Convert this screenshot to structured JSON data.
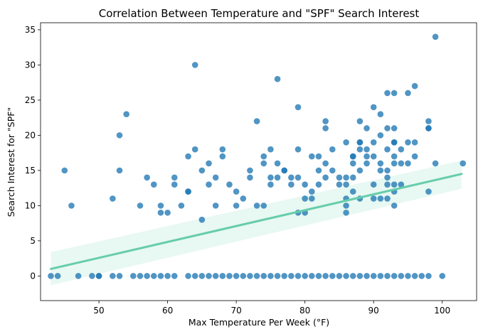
{
  "chart_data": {
    "type": "scatter",
    "title": "Correlation Between Temperature and \"SPF\" Search Interest",
    "xlabel": "Max Temperature Per Week (°F)",
    "ylabel": "Search Interest for \"SPF\"",
    "xlim": [
      41.5,
      105
    ],
    "ylim": [
      -3.5,
      36
    ],
    "xticks": [
      50,
      60,
      70,
      80,
      90,
      100
    ],
    "yticks": [
      0,
      5,
      10,
      15,
      20,
      25,
      30,
      35
    ],
    "grid": false,
    "point_color": "#1f77b4",
    "regression": {
      "color": "#66cdaa",
      "x_start": 43,
      "x_end": 102.8,
      "y_start": 1.0,
      "y_end": 14.5,
      "ci_start": [
        -1.3,
        3.4
      ],
      "ci_end": [
        12.4,
        16.4
      ]
    },
    "points_x": [
      45,
      46,
      52,
      53,
      53,
      54,
      56,
      57,
      58,
      59,
      59,
      60,
      61,
      61,
      62,
      63,
      63,
      63,
      64,
      64,
      65,
      65,
      66,
      66,
      67,
      67,
      68,
      68,
      69,
      70,
      70,
      71,
      72,
      72,
      73,
      73,
      74,
      74,
      74,
      75,
      75,
      75,
      76,
      76,
      76,
      77,
      77,
      78,
      78,
      79,
      79,
      79,
      79,
      80,
      80,
      80,
      81,
      81,
      81,
      82,
      82,
      82,
      83,
      83,
      83,
      83,
      84,
      84,
      85,
      85,
      86,
      86,
      86,
      86,
      86,
      86,
      87,
      87,
      87,
      87,
      87,
      88,
      88,
      88,
      88,
      88,
      88,
      89,
      89,
      89,
      89,
      90,
      90,
      90,
      90,
      90,
      91,
      91,
      91,
      91,
      91,
      92,
      92,
      92,
      92,
      92,
      92,
      92,
      93,
      93,
      93,
      93,
      93,
      93,
      93,
      93,
      93,
      94,
      94,
      94,
      95,
      95,
      95,
      96,
      96,
      96,
      98,
      98,
      98,
      98,
      99,
      99,
      103,
      43,
      44,
      47,
      49,
      50,
      50,
      52,
      53,
      55,
      56,
      57,
      58,
      59,
      60,
      61,
      63,
      64,
      65,
      66,
      67,
      68,
      69,
      70,
      71,
      72,
      73,
      74,
      75,
      76,
      77,
      78,
      79,
      80,
      81,
      82,
      83,
      84,
      85,
      86,
      87,
      88,
      89,
      90,
      91,
      92,
      93,
      94,
      95,
      96,
      97,
      98,
      100
    ],
    "points_y": [
      15,
      10,
      11,
      20,
      15,
      23,
      10,
      14,
      13,
      10,
      9,
      9,
      13,
      14,
      10,
      12,
      12,
      17,
      30,
      18,
      15,
      8,
      13,
      16,
      14,
      10,
      17,
      18,
      13,
      10,
      12,
      11,
      15,
      14,
      10,
      22,
      10,
      16,
      17,
      18,
      14,
      13,
      28,
      16,
      14,
      15,
      15,
      13,
      14,
      24,
      9,
      18,
      14,
      11,
      13,
      9,
      11,
      17,
      12,
      17,
      15,
      13,
      14,
      21,
      22,
      16,
      15,
      18,
      13,
      14,
      19,
      14,
      11,
      10,
      9,
      13,
      14,
      12,
      16,
      17,
      17,
      18,
      19,
      11,
      15,
      19,
      22,
      16,
      18,
      17,
      21,
      13,
      11,
      17,
      24,
      19,
      15,
      11,
      23,
      20,
      16,
      26,
      18,
      15,
      14,
      11,
      21,
      13,
      16,
      10,
      19,
      17,
      13,
      19,
      12,
      26,
      21,
      16,
      18,
      13,
      19,
      26,
      16,
      27,
      19,
      17,
      22,
      21,
      12,
      21,
      16,
      34,
      16,
      0,
      0,
      0,
      0,
      0,
      0,
      0,
      0,
      0,
      0,
      0,
      0,
      0,
      0,
      0,
      0,
      0,
      0,
      0,
      0,
      0,
      0,
      0,
      0,
      0,
      0,
      0,
      0,
      0,
      0,
      0,
      0,
      0,
      0,
      0,
      0,
      0,
      0,
      0,
      0,
      0,
      0,
      0,
      0,
      0,
      0,
      0,
      0,
      0,
      0,
      0,
      0,
      0
    ]
  }
}
